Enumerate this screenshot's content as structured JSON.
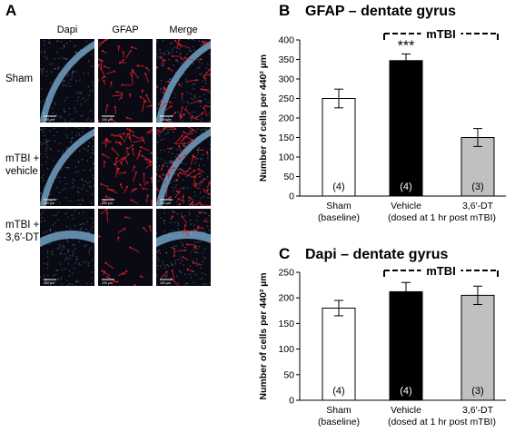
{
  "panel_a": {
    "letter": "A",
    "columns": [
      "Dapi",
      "GFAP",
      "Merge"
    ],
    "rows": [
      {
        "label": "Sham"
      },
      {
        "label": "mTBI +\nvehicle"
      },
      {
        "label": "mTBI +\n3,6′-DT"
      }
    ],
    "scale_bar_label": "100 µm",
    "colors": {
      "dapi": "#7fb6d9",
      "gfap": "#e0202a",
      "background": "#0a0a14"
    }
  },
  "chart_data": [
    {
      "letter": "B",
      "type": "bar",
      "title": "GFAP – dentate gyrus",
      "ylabel": "Number of cells  per 440² µm",
      "xlabel": "",
      "ylim": [
        0,
        400
      ],
      "yticks": [
        0,
        50,
        100,
        150,
        200,
        250,
        300,
        350,
        400
      ],
      "categories": [
        "Sham\n(baseline)",
        "Vehicle",
        "3,6′-DT"
      ],
      "values": [
        250,
        347,
        150
      ],
      "errors": [
        24,
        17,
        23
      ],
      "n_labels": [
        "(4)",
        "(4)",
        "(3)"
      ],
      "bar_colors": [
        "#ffffff",
        "#000000",
        "#c0c0c0"
      ],
      "significance": {
        "bar_index": 1,
        "text": "***"
      },
      "group_label": "mTBI",
      "dosing_note": "(dosed at 1 hr post mTBI)"
    },
    {
      "letter": "C",
      "type": "bar",
      "title": "Dapi – dentate gyrus",
      "ylabel": "Number of cells  per 440² µm",
      "xlabel": "",
      "ylim": [
        0,
        250
      ],
      "yticks": [
        0,
        50,
        100,
        150,
        200,
        250
      ],
      "categories": [
        "Sham\n(baseline)",
        "Vehicle",
        "3,6′-DT"
      ],
      "values": [
        180,
        212,
        205
      ],
      "errors": [
        15,
        18,
        18
      ],
      "n_labels": [
        "(4)",
        "(4)",
        "(3)"
      ],
      "bar_colors": [
        "#ffffff",
        "#000000",
        "#c0c0c0"
      ],
      "significance": null,
      "group_label": "mTBI",
      "dosing_note": "(dosed at 1 hr post mTBI)"
    }
  ]
}
